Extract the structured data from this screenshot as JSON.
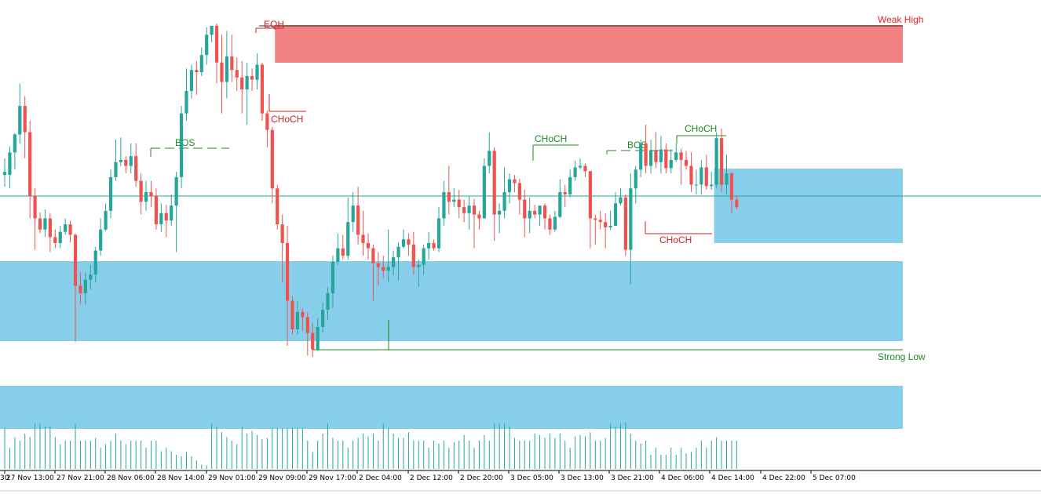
{
  "chart_data": {
    "type": "candlestick",
    "title": "",
    "xlabel": "",
    "ylabel": "",
    "ylim": [
      0,
      600
    ],
    "grid": false,
    "legend": "none",
    "colors": {
      "bull": "#26a69a",
      "bear": "#ef5350",
      "weak_high": "#e6262c",
      "strong_low": "#1f8a1f",
      "bos_choch_up": "#1f8a1f",
      "bos_choch_down": "#cc2222",
      "zone_supply": "#f28282",
      "zone_demand": "#87ceeb",
      "price_line": "#26a69a",
      "volume": "#26a69a"
    },
    "x_tick_labels": [
      "30",
      "27 Nov 13:00",
      "27 Nov 21:00",
      "28 Nov 06:00",
      "28 Nov 14:00",
      "29 Nov 01:00",
      "29 Nov 09:00",
      "29 Nov 17:00",
      "2 Dec 04:00",
      "2 Dec 12:00",
      "2 Dec 20:00",
      "3 Dec 05:00",
      "3 Dec 13:00",
      "3 Dec 21:00",
      "4 Dec 06:00",
      "4 Dec 14:00",
      "4 Dec 22:00",
      "5 Dec 07:00"
    ],
    "candles": [
      {
        "o": 398,
        "c": 402,
        "h": 420,
        "l": 382
      },
      {
        "o": 398,
        "c": 428,
        "h": 436,
        "l": 380
      },
      {
        "o": 428,
        "c": 452,
        "h": 454,
        "l": 405
      },
      {
        "o": 452,
        "c": 490,
        "h": 520,
        "l": 440
      },
      {
        "o": 490,
        "c": 455,
        "h": 503,
        "l": 420
      },
      {
        "o": 455,
        "c": 370,
        "h": 470,
        "l": 340
      },
      {
        "o": 370,
        "c": 340,
        "h": 380,
        "l": 298
      },
      {
        "o": 340,
        "c": 325,
        "h": 348,
        "l": 320
      },
      {
        "o": 325,
        "c": 340,
        "h": 352,
        "l": 315
      },
      {
        "o": 340,
        "c": 315,
        "h": 347,
        "l": 295
      },
      {
        "o": 315,
        "c": 307,
        "h": 325,
        "l": 300
      },
      {
        "o": 307,
        "c": 322,
        "h": 330,
        "l": 300
      },
      {
        "o": 322,
        "c": 332,
        "h": 340,
        "l": 318
      },
      {
        "o": 332,
        "c": 318,
        "h": 337,
        "l": 308
      },
      {
        "o": 318,
        "c": 250,
        "h": 320,
        "l": 175
      },
      {
        "o": 250,
        "c": 240,
        "h": 268,
        "l": 225
      },
      {
        "o": 240,
        "c": 258,
        "h": 268,
        "l": 225
      },
      {
        "o": 258,
        "c": 265,
        "h": 278,
        "l": 245
      },
      {
        "o": 265,
        "c": 297,
        "h": 302,
        "l": 255
      },
      {
        "o": 297,
        "c": 325,
        "h": 340,
        "l": 290
      },
      {
        "o": 325,
        "c": 350,
        "h": 360,
        "l": 323
      },
      {
        "o": 350,
        "c": 395,
        "h": 405,
        "l": 340
      },
      {
        "o": 395,
        "c": 415,
        "h": 445,
        "l": 390
      },
      {
        "o": 415,
        "c": 418,
        "h": 448,
        "l": 410
      },
      {
        "o": 418,
        "c": 410,
        "h": 423,
        "l": 400
      },
      {
        "o": 410,
        "c": 423,
        "h": 440,
        "l": 400
      },
      {
        "o": 423,
        "c": 390,
        "h": 440,
        "l": 382
      },
      {
        "o": 390,
        "c": 362,
        "h": 400,
        "l": 345
      },
      {
        "o": 362,
        "c": 375,
        "h": 390,
        "l": 350
      },
      {
        "o": 375,
        "c": 370,
        "h": 390,
        "l": 355
      },
      {
        "o": 370,
        "c": 332,
        "h": 380,
        "l": 325
      },
      {
        "o": 332,
        "c": 347,
        "h": 360,
        "l": 322
      },
      {
        "o": 347,
        "c": 337,
        "h": 358,
        "l": 315
      },
      {
        "o": 337,
        "c": 357,
        "h": 372,
        "l": 330
      },
      {
        "o": 357,
        "c": 395,
        "h": 402,
        "l": 295
      },
      {
        "o": 395,
        "c": 480,
        "h": 490,
        "l": 380
      },
      {
        "o": 480,
        "c": 510,
        "h": 540,
        "l": 470
      },
      {
        "o": 510,
        "c": 538,
        "h": 545,
        "l": 500
      },
      {
        "o": 538,
        "c": 535,
        "h": 550,
        "l": 505
      },
      {
        "o": 535,
        "c": 558,
        "h": 568,
        "l": 530
      },
      {
        "o": 558,
        "c": 585,
        "h": 595,
        "l": 545
      },
      {
        "o": 585,
        "c": 597,
        "h": 597,
        "l": 575
      },
      {
        "o": 597,
        "c": 548,
        "h": 600,
        "l": 520
      },
      {
        "o": 548,
        "c": 522,
        "h": 585,
        "l": 480
      },
      {
        "o": 522,
        "c": 556,
        "h": 590,
        "l": 500
      },
      {
        "o": 556,
        "c": 538,
        "h": 585,
        "l": 522
      },
      {
        "o": 538,
        "c": 528,
        "h": 555,
        "l": 510
      },
      {
        "o": 528,
        "c": 512,
        "h": 550,
        "l": 480
      },
      {
        "o": 512,
        "c": 530,
        "h": 548,
        "l": 465
      },
      {
        "o": 530,
        "c": 525,
        "h": 540,
        "l": 510
      },
      {
        "o": 525,
        "c": 545,
        "h": 560,
        "l": 512
      },
      {
        "o": 545,
        "c": 480,
        "h": 548,
        "l": 470
      },
      {
        "o": 480,
        "c": 458,
        "h": 484,
        "l": 435
      },
      {
        "o": 458,
        "c": 380,
        "h": 462,
        "l": 360
      },
      {
        "o": 380,
        "c": 332,
        "h": 385,
        "l": 325
      },
      {
        "o": 332,
        "c": 307,
        "h": 345,
        "l": 255
      },
      {
        "o": 307,
        "c": 230,
        "h": 330,
        "l": 170
      },
      {
        "o": 230,
        "c": 192,
        "h": 236,
        "l": 185
      },
      {
        "o": 192,
        "c": 215,
        "h": 230,
        "l": 185
      },
      {
        "o": 215,
        "c": 208,
        "h": 220,
        "l": 190
      },
      {
        "o": 208,
        "c": 187,
        "h": 215,
        "l": 157
      },
      {
        "o": 187,
        "c": 165,
        "h": 200,
        "l": 155
      },
      {
        "o": 165,
        "c": 195,
        "h": 207,
        "l": 163
      },
      {
        "o": 195,
        "c": 218,
        "h": 228,
        "l": 187
      },
      {
        "o": 218,
        "c": 240,
        "h": 248,
        "l": 205
      },
      {
        "o": 240,
        "c": 282,
        "h": 290,
        "l": 220
      },
      {
        "o": 282,
        "c": 300,
        "h": 320,
        "l": 278
      },
      {
        "o": 300,
        "c": 290,
        "h": 318,
        "l": 285
      },
      {
        "o": 290,
        "c": 335,
        "h": 368,
        "l": 285
      },
      {
        "o": 335,
        "c": 357,
        "h": 375,
        "l": 322
      },
      {
        "o": 357,
        "c": 318,
        "h": 382,
        "l": 305
      },
      {
        "o": 318,
        "c": 307,
        "h": 350,
        "l": 290
      },
      {
        "o": 307,
        "c": 300,
        "h": 320,
        "l": 285
      },
      {
        "o": 300,
        "c": 280,
        "h": 305,
        "l": 230
      },
      {
        "o": 280,
        "c": 275,
        "h": 295,
        "l": 250
      },
      {
        "o": 275,
        "c": 270,
        "h": 290,
        "l": 260
      },
      {
        "o": 270,
        "c": 275,
        "h": 325,
        "l": 255
      },
      {
        "o": 275,
        "c": 288,
        "h": 297,
        "l": 264
      },
      {
        "o": 288,
        "c": 302,
        "h": 308,
        "l": 257
      },
      {
        "o": 302,
        "c": 312,
        "h": 325,
        "l": 300
      },
      {
        "o": 312,
        "c": 305,
        "h": 320,
        "l": 290
      },
      {
        "o": 305,
        "c": 275,
        "h": 322,
        "l": 265
      },
      {
        "o": 275,
        "c": 278,
        "h": 285,
        "l": 248
      },
      {
        "o": 278,
        "c": 300,
        "h": 305,
        "l": 265
      },
      {
        "o": 300,
        "c": 307,
        "h": 322,
        "l": 285
      },
      {
        "o": 307,
        "c": 300,
        "h": 312,
        "l": 297
      },
      {
        "o": 300,
        "c": 340,
        "h": 355,
        "l": 295
      },
      {
        "o": 340,
        "c": 375,
        "h": 390,
        "l": 330
      },
      {
        "o": 375,
        "c": 362,
        "h": 410,
        "l": 345
      },
      {
        "o": 362,
        "c": 365,
        "h": 380,
        "l": 355
      },
      {
        "o": 365,
        "c": 355,
        "h": 378,
        "l": 340
      },
      {
        "o": 355,
        "c": 347,
        "h": 365,
        "l": 335
      },
      {
        "o": 347,
        "c": 357,
        "h": 370,
        "l": 325
      },
      {
        "o": 357,
        "c": 345,
        "h": 366,
        "l": 300
      },
      {
        "o": 345,
        "c": 340,
        "h": 350,
        "l": 325
      },
      {
        "o": 340,
        "c": 410,
        "h": 420,
        "l": 340
      },
      {
        "o": 410,
        "c": 430,
        "h": 455,
        "l": 400
      },
      {
        "o": 430,
        "c": 345,
        "h": 435,
        "l": 310
      },
      {
        "o": 345,
        "c": 350,
        "h": 360,
        "l": 320
      },
      {
        "o": 350,
        "c": 375,
        "h": 408,
        "l": 340
      },
      {
        "o": 375,
        "c": 392,
        "h": 400,
        "l": 360
      },
      {
        "o": 392,
        "c": 387,
        "h": 398,
        "l": 375
      },
      {
        "o": 387,
        "c": 365,
        "h": 393,
        "l": 345
      },
      {
        "o": 365,
        "c": 340,
        "h": 378,
        "l": 315
      },
      {
        "o": 340,
        "c": 350,
        "h": 368,
        "l": 320
      },
      {
        "o": 350,
        "c": 345,
        "h": 358,
        "l": 340
      },
      {
        "o": 345,
        "c": 357,
        "h": 357,
        "l": 330
      },
      {
        "o": 357,
        "c": 340,
        "h": 360,
        "l": 325
      },
      {
        "o": 340,
        "c": 325,
        "h": 345,
        "l": 318
      },
      {
        "o": 325,
        "c": 342,
        "h": 350,
        "l": 322
      },
      {
        "o": 342,
        "c": 375,
        "h": 392,
        "l": 340
      },
      {
        "o": 375,
        "c": 372,
        "h": 385,
        "l": 355
      },
      {
        "o": 372,
        "c": 395,
        "h": 405,
        "l": 368
      },
      {
        "o": 395,
        "c": 408,
        "h": 417,
        "l": 390
      },
      {
        "o": 408,
        "c": 410,
        "h": 420,
        "l": 405
      },
      {
        "o": 410,
        "c": 403,
        "h": 413,
        "l": 395
      },
      {
        "o": 403,
        "c": 340,
        "h": 403,
        "l": 300
      },
      {
        "o": 340,
        "c": 338,
        "h": 345,
        "l": 305
      },
      {
        "o": 338,
        "c": 335,
        "h": 350,
        "l": 325
      },
      {
        "o": 335,
        "c": 328,
        "h": 347,
        "l": 300
      },
      {
        "o": 328,
        "c": 330,
        "h": 350,
        "l": 325
      },
      {
        "o": 330,
        "c": 360,
        "h": 375,
        "l": 330
      },
      {
        "o": 360,
        "c": 368,
        "h": 380,
        "l": 357
      },
      {
        "o": 368,
        "c": 298,
        "h": 372,
        "l": 290
      },
      {
        "o": 298,
        "c": 380,
        "h": 400,
        "l": 252
      },
      {
        "o": 380,
        "c": 405,
        "h": 410,
        "l": 360
      },
      {
        "o": 405,
        "c": 440,
        "h": 445,
        "l": 395
      },
      {
        "o": 440,
        "c": 410,
        "h": 465,
        "l": 400
      },
      {
        "o": 410,
        "c": 430,
        "h": 445,
        "l": 400
      },
      {
        "o": 430,
        "c": 415,
        "h": 455,
        "l": 407
      },
      {
        "o": 415,
        "c": 432,
        "h": 450,
        "l": 400
      },
      {
        "o": 432,
        "c": 407,
        "h": 440,
        "l": 400
      },
      {
        "o": 407,
        "c": 418,
        "h": 432,
        "l": 400
      },
      {
        "o": 418,
        "c": 428,
        "h": 440,
        "l": 415
      },
      {
        "o": 428,
        "c": 418,
        "h": 433,
        "l": 385
      },
      {
        "o": 418,
        "c": 410,
        "h": 430,
        "l": 405
      },
      {
        "o": 410,
        "c": 385,
        "h": 428,
        "l": 375
      },
      {
        "o": 385,
        "c": 385,
        "h": 405,
        "l": 372
      },
      {
        "o": 385,
        "c": 408,
        "h": 418,
        "l": 372
      },
      {
        "o": 408,
        "c": 383,
        "h": 425,
        "l": 378
      },
      {
        "o": 383,
        "c": 385,
        "h": 402,
        "l": 378
      },
      {
        "o": 385,
        "c": 447,
        "h": 455,
        "l": 380
      },
      {
        "o": 447,
        "c": 385,
        "h": 460,
        "l": 375
      },
      {
        "o": 385,
        "c": 400,
        "h": 425,
        "l": 372
      },
      {
        "o": 400,
        "c": 365,
        "h": 402,
        "l": 347
      },
      {
        "o": 365,
        "c": 355,
        "h": 370,
        "l": 352
      }
    ],
    "volumes": [
      58,
      30,
      45,
      40,
      50,
      45,
      64,
      64,
      60,
      60,
      45,
      35,
      40,
      40,
      64,
      40,
      40,
      40,
      44,
      30,
      35,
      40,
      50,
      40,
      35,
      40,
      40,
      40,
      30,
      40,
      40,
      25,
      30,
      25,
      20,
      18,
      24,
      18,
      12,
      6,
      5,
      64,
      60,
      52,
      45,
      40,
      35,
      60,
      50,
      54,
      48,
      42,
      44,
      58,
      58,
      58,
      58,
      58,
      58,
      58,
      40,
      24,
      40,
      50,
      64,
      44,
      40,
      40,
      30,
      40,
      44,
      50,
      46,
      50,
      40,
      64,
      58,
      50,
      44,
      44,
      52,
      40,
      40,
      40,
      30,
      40,
      36,
      40,
      30,
      38,
      40,
      48,
      40,
      30,
      40,
      48,
      40,
      64,
      64,
      64,
      60,
      44,
      40,
      40,
      40,
      50,
      48,
      44,
      50,
      44,
      50,
      40,
      30,
      46,
      48,
      46,
      52,
      40,
      40,
      44,
      64,
      60,
      64,
      66,
      50,
      40,
      36,
      40,
      20,
      30,
      20,
      20,
      30,
      20,
      30,
      22,
      24,
      30,
      40,
      30,
      40,
      45,
      40,
      40,
      40,
      40
    ],
    "zones": [
      {
        "kind": "supply",
        "from_index": 54,
        "to": "right",
        "top": 568,
        "bottom": 520
      },
      {
        "kind": "demand",
        "from_index": 141,
        "to": "right",
        "top": 385,
        "bottom": 290
      },
      {
        "kind": "demand",
        "from_index": 0,
        "to": "right",
        "top": 267,
        "bottom": 165
      }
    ],
    "lower_band": {
      "kind": "demand",
      "from_index": 0,
      "to": "right"
    },
    "levels": [
      {
        "name": "weak-high",
        "label": "Weak High",
        "value": 597,
        "from_index": 41,
        "to": "right"
      },
      {
        "name": "strong-low",
        "label": "Strong Low",
        "value": 155,
        "from_index": 61,
        "to": "right"
      },
      {
        "name": "current-price",
        "label": "",
        "value": 352,
        "from_index": 0,
        "to": "right"
      }
    ],
    "structure_marks": [
      {
        "label": "EQH",
        "value": 597,
        "from_index": 40,
        "to_index": 44,
        "direction": "down",
        "style": "solid"
      },
      {
        "label": "BOS",
        "value": 410,
        "from_index": 24,
        "to_index": 36,
        "direction": "up",
        "style": "dashed"
      },
      {
        "label": "CHoCH",
        "value": 458,
        "from_index": 43,
        "to_index": 49,
        "direction": "down",
        "style": "solid"
      },
      {
        "label": "CHoCH",
        "value": 418,
        "from_index": 84,
        "to_index": 91,
        "direction": "up",
        "style": "solid"
      },
      {
        "label": "BOS",
        "value": 405,
        "from_index": 95,
        "to_index": 110,
        "direction": "up",
        "style": "dashed"
      },
      {
        "label": "CHoCH",
        "value": 428,
        "from_index": 107,
        "to_index": 115,
        "direction": "up",
        "style": "solid"
      },
      {
        "label": "CHoCH",
        "value": 300,
        "from_index": 103,
        "to_index": 113,
        "direction": "down",
        "style": "solid"
      }
    ]
  }
}
